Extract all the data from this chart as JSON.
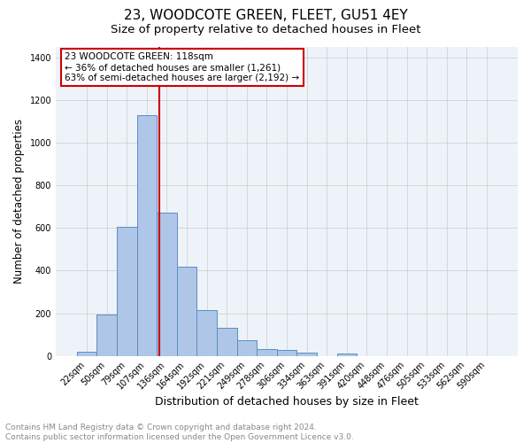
{
  "title": "23, WOODCOTE GREEN, FLEET, GU51 4EY",
  "subtitle": "Size of property relative to detached houses in Fleet",
  "xlabel": "Distribution of detached houses by size in Fleet",
  "ylabel": "Number of detached properties",
  "categories": [
    "22sqm",
    "50sqm",
    "79sqm",
    "107sqm",
    "136sqm",
    "164sqm",
    "192sqm",
    "221sqm",
    "249sqm",
    "278sqm",
    "306sqm",
    "334sqm",
    "363sqm",
    "391sqm",
    "420sqm",
    "448sqm",
    "476sqm",
    "505sqm",
    "533sqm",
    "562sqm",
    "590sqm"
  ],
  "values": [
    18,
    195,
    607,
    1130,
    670,
    420,
    215,
    130,
    73,
    33,
    27,
    14,
    0,
    13,
    0,
    0,
    0,
    0,
    0,
    0,
    0
  ],
  "bar_color": "#aec6e8",
  "bar_edge_color": "#5a8fc0",
  "vline_x": 3.62,
  "vline_color": "#cc0000",
  "annotation_line1": "23 WOODCOTE GREEN: 118sqm",
  "annotation_line2": "← 36% of detached houses are smaller (1,261)",
  "annotation_line3": "63% of semi-detached houses are larger (2,192) →",
  "annotation_box_color": "#ffffff",
  "annotation_box_edge": "#cc0000",
  "ylim": [
    0,
    1450
  ],
  "yticks": [
    0,
    200,
    400,
    600,
    800,
    1000,
    1200,
    1400
  ],
  "grid_color": "#cccccc",
  "bg_color": "#eef2f9",
  "footer": "Contains HM Land Registry data © Crown copyright and database right 2024.\nContains public sector information licensed under the Open Government Licence v3.0.",
  "title_fontsize": 11,
  "subtitle_fontsize": 9.5,
  "xlabel_fontsize": 9,
  "ylabel_fontsize": 8.5,
  "tick_fontsize": 7,
  "footer_fontsize": 6.5,
  "annotation_fontsize": 7.5
}
